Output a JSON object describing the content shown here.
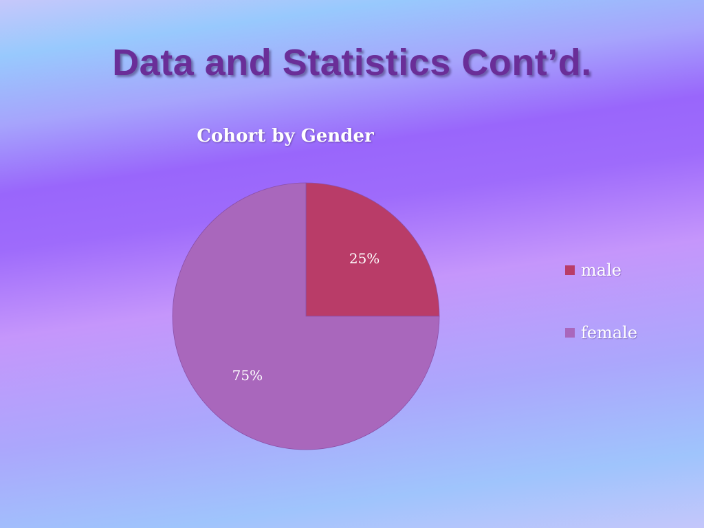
{
  "slide": {
    "title": "Data and Statistics Cont’d."
  },
  "chart_data": {
    "type": "pie",
    "title": "Cohort by Gender",
    "categories": [
      "male",
      "female"
    ],
    "values": [
      25,
      75
    ],
    "data_labels": [
      "25%",
      "75%"
    ],
    "colors": [
      "#b93c68",
      "#a967bc"
    ],
    "legend": "right"
  }
}
